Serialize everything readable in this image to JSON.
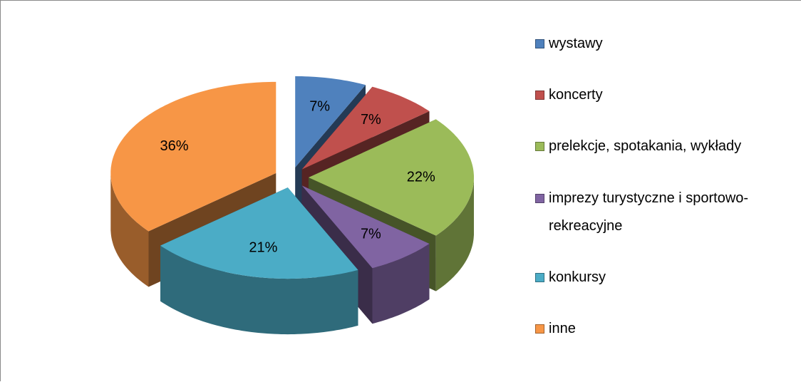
{
  "chart_data": {
    "type": "pie3d",
    "categories": [
      "wystawy",
      "koncerty",
      "prelekcje, spotakania, wykłady",
      "imprezy turystyczne i sportowo-rekreacyjne",
      "konkursy",
      "inne"
    ],
    "values": [
      7,
      7,
      22,
      7,
      21,
      36
    ],
    "value_labels": [
      "7%",
      "7%",
      "22%",
      "7%",
      "21%",
      "36%"
    ],
    "colors": [
      "#4f81bd",
      "#c0504d",
      "#9bbb59",
      "#8064a2",
      "#4bacc6",
      "#f79646"
    ],
    "legend": "right"
  }
}
